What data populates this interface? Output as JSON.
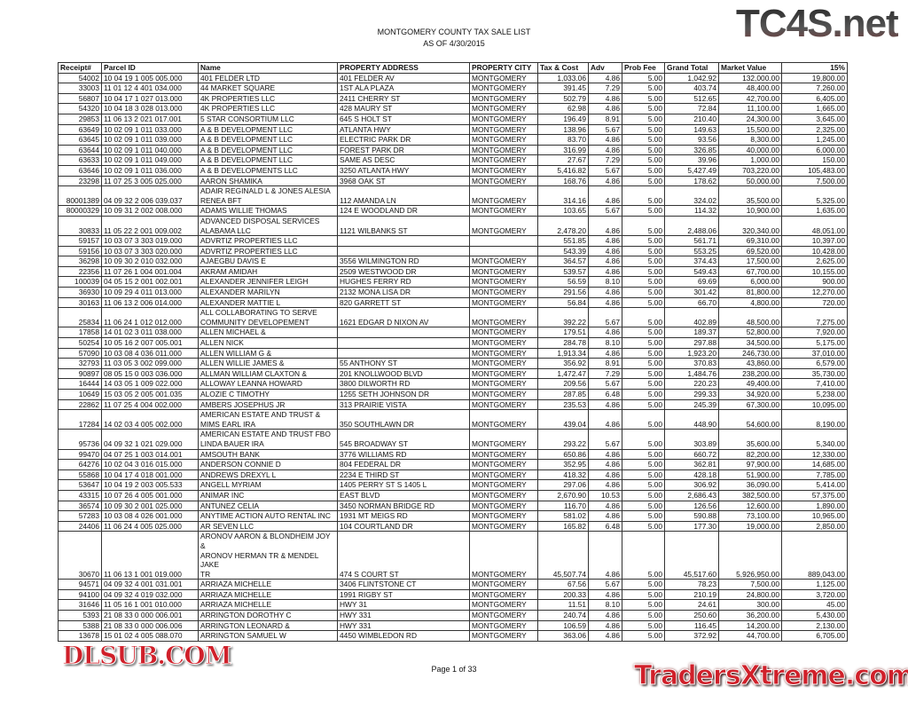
{
  "document": {
    "title": "MONTGOMERY COUNTY TAX SALE LIST",
    "subtitle": "AS OF 4/30/2015",
    "footer": "Page 1 of 33",
    "watermarks": [
      "TC4S.net",
      "DLSUB.COM",
      "TradersXtreme.com"
    ]
  },
  "table": {
    "headers": [
      "Receipt#",
      "Parcel ID",
      "Name",
      "PROPERTY ADDRESS",
      "PROPERTY CITY",
      "Tax & Cost",
      "Adv",
      "Prob Fee",
      "Grand Total",
      "Market Value",
      "15%"
    ],
    "rows": [
      [
        "54002",
        "10 04 19 1 005 005.000",
        "401 FELDER LTD",
        "401 FELDER AV",
        "MONTGOMERY",
        "1,033.06",
        "4.86",
        "5.00",
        "1,042.92",
        "132,000.00",
        "19,800.00"
      ],
      [
        "33003",
        "11 01 12 4 401 034.000",
        "44 MARKET SQUARE",
        "1ST ALA PLAZA",
        "MONTGOMERY",
        "391.45",
        "7.29",
        "5.00",
        "403.74",
        "48,400.00",
        "7,260.00"
      ],
      [
        "56807",
        "10 04 17 1 027 013.000",
        "4K PROPERTIES LLC",
        "2411 CHERRY ST",
        "MONTGOMERY",
        "502.79",
        "4.86",
        "5.00",
        "512.65",
        "42,700.00",
        "6,405.00"
      ],
      [
        "54320",
        "10 04 18 3 028 013.000",
        "4K PROPERTIES LLC",
        "428 MAURY ST",
        "MONTGOMERY",
        "62.98",
        "4.86",
        "5.00",
        "72.84",
        "11,100.00",
        "1,665.00"
      ],
      [
        "29853",
        "11 06 13 2 021 017.001",
        "5 STAR CONSORTIUM LLC",
        "645 S HOLT ST",
        "MONTGOMERY",
        "196.49",
        "8.91",
        "5.00",
        "210.40",
        "24,300.00",
        "3,645.00"
      ],
      [
        "63649",
        "10 02 09 1 011 033.000",
        "A & B DEVELOPMENT LLC",
        "ATLANTA HWY",
        "MONTGOMERY",
        "138.96",
        "5.67",
        "5.00",
        "149.63",
        "15,500.00",
        "2,325.00"
      ],
      [
        "63645",
        "10 02 09 1 011 039.000",
        "A & B DEVELOPMENT LLC",
        "ELECTRIC PARK DR",
        "MONTGOMERY",
        "83.70",
        "4.86",
        "5.00",
        "93.56",
        "8,300.00",
        "1,245.00"
      ],
      [
        "63644",
        "10 02 09 1 011 040.000",
        "A & B DEVELOPMENT LLC",
        "FOREST PARK DR",
        "MONTGOMERY",
        "316.99",
        "4.86",
        "5.00",
        "326.85",
        "40,000.00",
        "6,000.00"
      ],
      [
        "63633",
        "10 02 09 1 011 049.000",
        "A & B DEVELOPMENT LLC",
        "SAME AS DESC",
        "MONTGOMERY",
        "27.67",
        "7.29",
        "5.00",
        "39.96",
        "1,000.00",
        "150.00"
      ],
      [
        "63646",
        "10 02 09 1 011 036.000",
        "A & B DEVELOPMENTS LLC",
        "3250 ATLANTA HWY",
        "MONTGOMERY",
        "5,416.82",
        "5.67",
        "5.00",
        "5,427.49",
        "703,220.00",
        "105,483.00"
      ],
      [
        "23298",
        "11 07 25 3 005 025.000",
        "AARON SHAMIKA",
        "3968 OAK ST",
        "MONTGOMERY",
        "168.76",
        "4.86",
        "5.00",
        "178.62",
        "50,000.00",
        "7,500.00"
      ],
      [
        "80001389",
        "04 09 32 2 006 039.037",
        "ADAIR REGINALD L & JONES ALESIA\nRENEA BFT",
        "112 AMANDA LN",
        "MONTGOMERY",
        "314.16",
        "4.86",
        "5.00",
        "324.02",
        "35,500.00",
        "5,325.00"
      ],
      [
        "80000329",
        "10 09 31 2 002 008.000",
        "ADAMS WILLIE THOMAS",
        "124 E WOODLAND DR",
        "MONTGOMERY",
        "103.65",
        "5.67",
        "5.00",
        "114.32",
        "10,900.00",
        "1,635.00"
      ],
      [
        "30833",
        "11 05 22 2 001 009.002",
        "ADVANCED DISPOSAL SERVICES\nALABAMA LLC",
        "1121 WILBANKS ST",
        "MONTGOMERY",
        "2,478.20",
        "4.86",
        "5.00",
        "2,488.06",
        "320,340.00",
        "48,051.00"
      ],
      [
        "59157",
        "10 03 07 3 303 019.000",
        "ADVRTIZ PROPERTIES LLC",
        "",
        "",
        "551.85",
        "4.86",
        "5.00",
        "561.71",
        "69,310.00",
        "10,397.00"
      ],
      [
        "59156",
        "10 03 07 3 303 020.000",
        "ADVRTIZ PROPERTIES LLC",
        "",
        "",
        "543.39",
        "4.86",
        "5.00",
        "553.25",
        "69,520.00",
        "10,428.00"
      ],
      [
        "36298",
        "10 09 30 2 010 032.000",
        "AJAEGBU DAVIS E",
        "3556 WILMINGTON RD",
        "MONTGOMERY",
        "364.57",
        "4.86",
        "5.00",
        "374.43",
        "17,500.00",
        "2,625.00"
      ],
      [
        "22356",
        "11 07 26 1 004 001.004",
        "AKRAM AMIDAH",
        "2509 WESTWOOD DR",
        "MONTGOMERY",
        "539.57",
        "4.86",
        "5.00",
        "549.43",
        "67,700.00",
        "10,155.00"
      ],
      [
        "100039",
        "04 05 15 2 001 002.001",
        "ALEXANDER JENNIFER LEIGH",
        "HUGHES FERRY RD",
        "MONTGOMERY",
        "56.59",
        "8.10",
        "5.00",
        "69.69",
        "6,000.00",
        "900.00"
      ],
      [
        "36930",
        "10 09 29 4 011 013.000",
        "ALEXANDER MARILYN",
        "2132 MONA LISA DR",
        "MONTGOMERY",
        "291.56",
        "4.86",
        "5.00",
        "301.42",
        "81,800.00",
        "12,270.00"
      ],
      [
        "30163",
        "11 06 13 2 006 014.000",
        "ALEXANDER MATTIE L",
        "820 GARRETT ST",
        "MONTGOMERY",
        "56.84",
        "4.86",
        "5.00",
        "66.70",
        "4,800.00",
        "720.00"
      ],
      [
        "25834",
        "11 06 24 1 012 012.000",
        "ALL COLLABORATING TO SERVE\nCOMMUNITY DEVELOPEMENT",
        "1621 EDGAR D NIXON AV",
        "MONTGOMERY",
        "392.22",
        "5.67",
        "5.00",
        "402.89",
        "48,500.00",
        "7,275.00"
      ],
      [
        "17858",
        "14 01 02 3 011 038.000",
        "ALLEN MICHAEL &",
        "",
        "MONTGOMERY",
        "179.51",
        "4.86",
        "5.00",
        "189.37",
        "52,800.00",
        "7,920.00"
      ],
      [
        "50254",
        "10 05 16 2 007 005.001",
        "ALLEN NICK",
        "",
        "MONTGOMERY",
        "284.78",
        "8.10",
        "5.00",
        "297.88",
        "34,500.00",
        "5,175.00"
      ],
      [
        "57090",
        "10 03 08 4 036 011.000",
        "ALLEN WILLIAM G &",
        "",
        "MONTGOMERY",
        "1,913.34",
        "4.86",
        "5.00",
        "1,923.20",
        "246,730.00",
        "37,010.00"
      ],
      [
        "32793",
        "11 03 05 3 002 099.000",
        "ALLEN WILLIE JAMES &",
        "55 ANTHONY ST",
        "MONTGOMERY",
        "356.92",
        "8.91",
        "5.00",
        "370.83",
        "43,860.00",
        "6,579.00"
      ],
      [
        "90897",
        "08 05 15 0 003 036.000",
        "ALLMAN WILLIAM CLAXTON &",
        "201 KNOLLWOOD BLVD",
        "MONTGOMERY",
        "1,472.47",
        "7.29",
        "5.00",
        "1,484.76",
        "238,200.00",
        "35,730.00"
      ],
      [
        "16444",
        "14 03 05 1 009 022.000",
        "ALLOWAY LEANNA HOWARD",
        "3800 DILWORTH RD",
        "MONTGOMERY",
        "209.56",
        "5.67",
        "5.00",
        "220.23",
        "49,400.00",
        "7,410.00"
      ],
      [
        "10649",
        "15 03 05 2 005 001.035",
        "ALOZIE C TIMOTHY",
        "1255 SETH JOHNSON DR",
        "MONTGOMERY",
        "287.85",
        "6.48",
        "5.00",
        "299.33",
        "34,920.00",
        "5,238.00"
      ],
      [
        "22862",
        "11 07 25 4 004 002.000",
        "AMBERS JOSEPHUS JR",
        "313 PRAIRIE VISTA",
        "MONTGOMERY",
        "235.53",
        "4.86",
        "5.00",
        "245.39",
        "67,300.00",
        "10,095.00"
      ],
      [
        "17284",
        "14 02 03 4 005 002.000",
        "AMERICAN ESTATE AND TRUST &\nMIMS EARL IRA",
        "350 SOUTHLAWN DR",
        "MONTGOMERY",
        "439.04",
        "4.86",
        "5.00",
        "448.90",
        "54,600.00",
        "8,190.00"
      ],
      [
        "95736",
        "04 09 32 1 021 029.000",
        "AMERICAN ESTATE AND TRUST FBO\nLINDA BAUER IRA",
        "545 BROADWAY ST",
        "MONTGOMERY",
        "293.22",
        "5.67",
        "5.00",
        "303.89",
        "35,600.00",
        "5,340.00"
      ],
      [
        "99470",
        "04 07 25 1 003 014.001",
        "AMSOUTH BANK",
        "3776 WILLIAMS RD",
        "MONTGOMERY",
        "650.86",
        "4.86",
        "5.00",
        "660.72",
        "82,200.00",
        "12,330.00"
      ],
      [
        "64276",
        "10 02 04 3 016 015.000",
        "ANDERSON CONNIE D",
        "804 FEDERAL DR",
        "MONTGOMERY",
        "352.95",
        "4.86",
        "5.00",
        "362.81",
        "97,900.00",
        "14,685.00"
      ],
      [
        "55868",
        "10 04 17 4 018 001.000",
        "ANDREWS DREXYL L",
        "2234 E THIRD ST",
        "MONTGOMERY",
        "418.32",
        "4.86",
        "5.00",
        "428.18",
        "51,900.00",
        "7,785.00"
      ],
      [
        "53647",
        "10 04 19 2 003 005.533",
        "ANGELL MYRIAM",
        "1405 PERRY ST S 1405 L",
        "MONTGOMERY",
        "297.06",
        "4.86",
        "5.00",
        "306.92",
        "36,090.00",
        "5,414.00"
      ],
      [
        "43315",
        "10 07 26 4 005 001.000",
        "ANIMAR INC",
        "EAST BLVD",
        "MONTGOMERY",
        "2,670.90",
        "10.53",
        "5.00",
        "2,686.43",
        "382,500.00",
        "57,375.00"
      ],
      [
        "36574",
        "10 09 30 2 001 025.000",
        "ANTUNEZ CELIA",
        "3450 NORMAN BRIDGE RD",
        "MONTGOMERY",
        "116.70",
        "4.86",
        "5.00",
        "126.56",
        "12,600.00",
        "1,890.00"
      ],
      [
        "57283",
        "10 03 08 4 026 001.000",
        "ANYTIME ACTION AUTO RENTAL INC",
        "1931 MT MEIGS RD",
        "MONTGOMERY",
        "581.02",
        "4.86",
        "5.00",
        "590.88",
        "73,100.00",
        "10,965.00"
      ],
      [
        "24406",
        "11 06 24 4 005 025.000",
        "AR SEVEN LLC",
        "104 COURTLAND DR",
        "MONTGOMERY",
        "165.82",
        "6.48",
        "5.00",
        "177.30",
        "19,000.00",
        "2,850.00"
      ],
      [
        "30670",
        "11 06 13 1 001 019.000",
        "ARONOV AARON & BLONDHEIM JOY &\nARONOV HERMAN TR & MENDEL JAKE\nTR",
        "474 S COURT ST",
        "MONTGOMERY",
        "45,507.74",
        "4.86",
        "5.00",
        "45,517.60",
        "5,926,950.00",
        "889,043.00"
      ],
      [
        "94571",
        "04 09 32 4 001 031.001",
        "ARRIAZA MICHELLE",
        "3406 FLINTSTONE CT",
        "MONTGOMERY",
        "67.56",
        "5.67",
        "5.00",
        "78.23",
        "7,500.00",
        "1,125.00"
      ],
      [
        "94100",
        "04 09 32 4 019 032.000",
        "ARRIAZA MICHELLE",
        "1991 RIGBY ST",
        "MONTGOMERY",
        "200.33",
        "4.86",
        "5.00",
        "210.19",
        "24,800.00",
        "3,720.00"
      ],
      [
        "31646",
        "11 05 16 1 001 010.000",
        "ARRIAZA MICHELLE",
        "HWY 31",
        "MONTGOMERY",
        "11.51",
        "8.10",
        "5.00",
        "24.61",
        "300.00",
        "45.00"
      ],
      [
        "5393",
        "21 08 33 0 000 006.001",
        "ARRINGTON DOROTHY C",
        "HWY 331",
        "MONTGOMERY",
        "240.74",
        "4.86",
        "5.00",
        "250.60",
        "36,200.00",
        "5,430.00"
      ],
      [
        "5388",
        "21 08 33 0 000 006.006",
        "ARRINGTON LEONARD &",
        "HWY 331",
        "MONTGOMERY",
        "106.59",
        "4.86",
        "5.00",
        "116.45",
        "14,200.00",
        "2,130.00"
      ],
      [
        "13678",
        "15 01 02 4 005 088.070",
        "ARRINGTON SAMUEL W",
        "4450 WIMBLEDON RD",
        "MONTGOMERY",
        "363.06",
        "4.86",
        "5.00",
        "372.92",
        "44,700.00",
        "6,705.00"
      ]
    ]
  }
}
